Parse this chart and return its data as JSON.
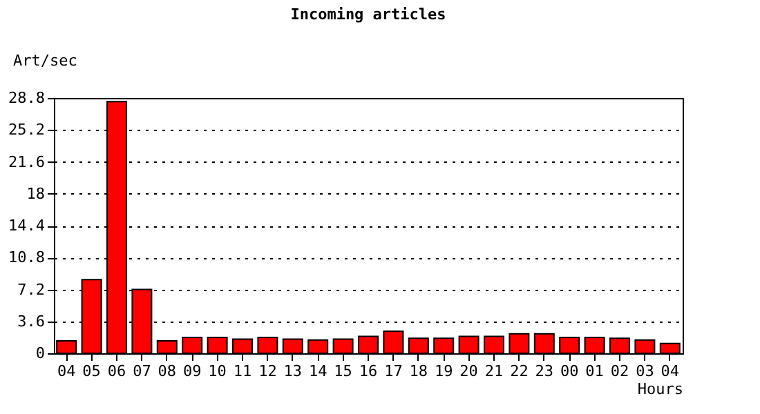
{
  "chart_data": {
    "type": "bar",
    "title": "Incoming articles",
    "ylabel": "Art/sec",
    "xlabel": "Hours",
    "categories": [
      "04",
      "05",
      "06",
      "07",
      "08",
      "09",
      "10",
      "11",
      "12",
      "13",
      "14",
      "15",
      "16",
      "17",
      "18",
      "19",
      "20",
      "21",
      "22",
      "23",
      "00",
      "01",
      "02",
      "03",
      "04"
    ],
    "values": [
      1.4,
      8.3,
      28.4,
      7.2,
      1.4,
      1.8,
      1.8,
      1.6,
      1.8,
      1.6,
      1.5,
      1.6,
      1.9,
      2.5,
      1.7,
      1.7,
      1.9,
      1.9,
      2.2,
      2.2,
      1.8,
      1.8,
      1.7,
      1.5,
      1.1
    ],
    "color": "#ff0000",
    "ylim": [
      0,
      28.8
    ],
    "yticks": [
      0,
      3.6,
      7.2,
      10.8,
      14.4,
      18,
      21.6,
      25.2,
      28.8
    ],
    "grid": "y"
  }
}
